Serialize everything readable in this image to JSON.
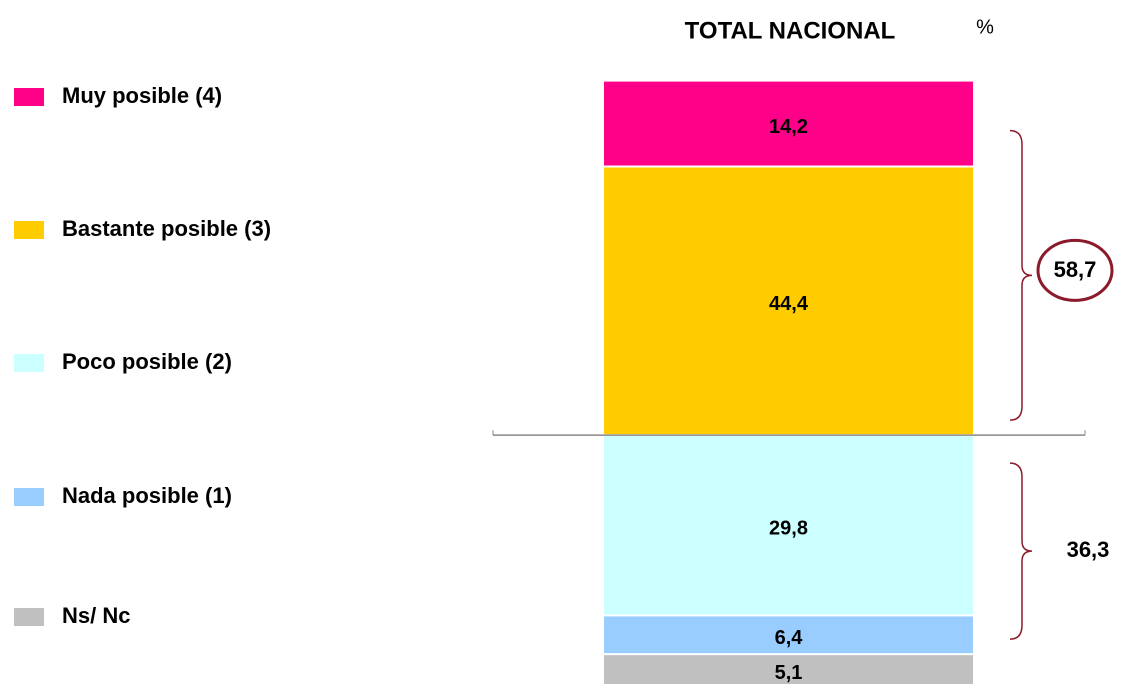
{
  "chart_data": {
    "type": "stacked_bar",
    "title": "TOTAL NACIONAL",
    "unit_label": "%",
    "categories": [
      "TOTAL NACIONAL"
    ],
    "series": [
      {
        "name": "Muy posible (4)",
        "color": "#ff0088",
        "values": [
          14.2
        ],
        "value_labels": [
          "14,2"
        ]
      },
      {
        "name": "Bastante posible (3)",
        "color": "#ffcc00",
        "values": [
          44.4
        ],
        "value_labels": [
          "44,4"
        ]
      },
      {
        "name": "Poco posible (2)",
        "color": "#ccffff",
        "values": [
          29.8
        ],
        "value_labels": [
          "29,8"
        ]
      },
      {
        "name": "Nada posible (1)",
        "color": "#99ccff",
        "values": [
          6.4
        ],
        "value_labels": [
          "6,4"
        ]
      },
      {
        "name": "Ns/ Nc",
        "color": "#c0c0c0",
        "values": [
          5.1
        ],
        "value_labels": [
          "5,1"
        ]
      }
    ],
    "ylim": [
      0,
      100
    ],
    "legend": "left",
    "annotations": [
      {
        "value": 58.7,
        "label": "58,7"
      },
      {
        "value": 36.3,
        "label": "36,3"
      }
    ]
  }
}
